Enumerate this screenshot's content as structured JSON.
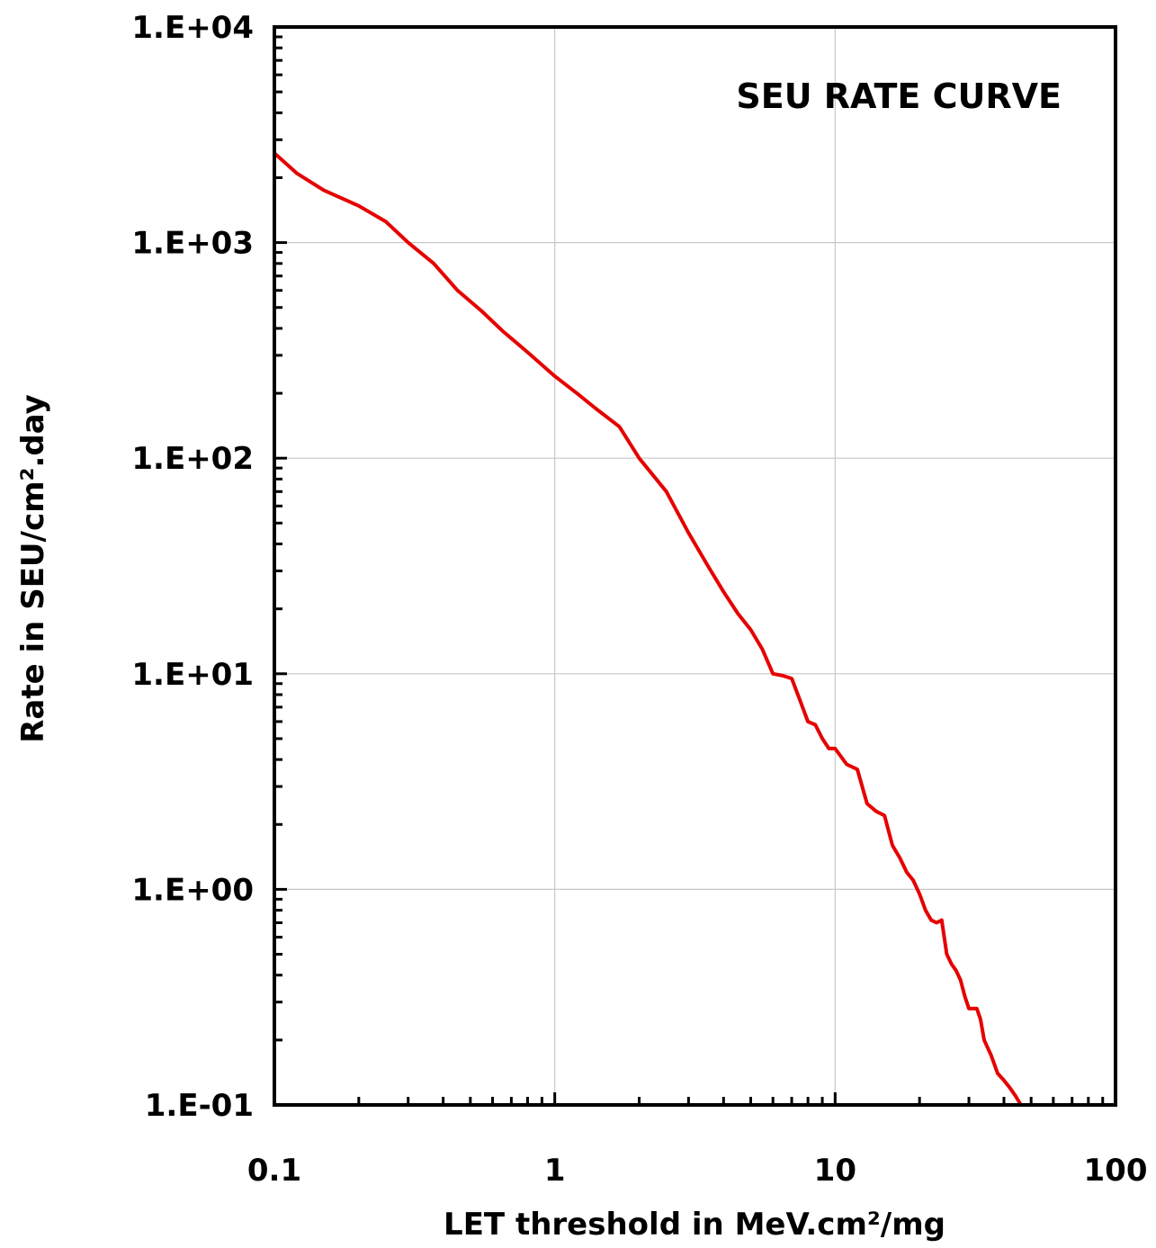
{
  "chart_data": {
    "type": "line",
    "title": "SEU RATE CURVE",
    "xlabel": "LET threshold in MeV.cm²/mg",
    "ylabel": "Rate in SEU/cm².day",
    "xscale": "log",
    "yscale": "log",
    "xlim": [
      0.1,
      100
    ],
    "ylim": [
      0.1,
      10000
    ],
    "grid": true,
    "legend": "none",
    "x_tick_labels": [
      "0.1",
      "1",
      "10",
      "100"
    ],
    "y_tick_labels": [
      "1.E-01",
      "1.E+00",
      "1.E+01",
      "1.E+02",
      "1.E+03",
      "1.E+04"
    ],
    "series": [
      {
        "color": "#e60000",
        "x": [
          0.1,
          0.12,
          0.15,
          0.2,
          0.25,
          0.3,
          0.37,
          0.45,
          0.55,
          0.65,
          0.8,
          1.0,
          1.2,
          1.4,
          1.7,
          2.0,
          2.5,
          3.0,
          3.5,
          4.0,
          4.5,
          5.0,
          5.5,
          6.0,
          6.5,
          7.0,
          7.5,
          8.0,
          8.5,
          9.0,
          9.5,
          10,
          11,
          12,
          13,
          14,
          15,
          16,
          17,
          18,
          19,
          20,
          21,
          22,
          23,
          24,
          25,
          26,
          27,
          28,
          29,
          30,
          32,
          33,
          34,
          36,
          38,
          40,
          42,
          44,
          46
        ],
        "y": [
          2600,
          2100,
          1750,
          1480,
          1250,
          1000,
          800,
          600,
          480,
          390,
          310,
          240,
          200,
          170,
          140,
          100,
          70,
          45,
          32,
          24,
          19,
          16,
          13,
          10,
          9.8,
          9.5,
          7.5,
          6.0,
          5.8,
          5.0,
          4.5,
          4.5,
          3.8,
          3.6,
          2.5,
          2.3,
          2.2,
          1.6,
          1.4,
          1.2,
          1.1,
          0.95,
          0.8,
          0.72,
          0.7,
          0.72,
          0.5,
          0.45,
          0.42,
          0.38,
          0.32,
          0.28,
          0.28,
          0.25,
          0.2,
          0.17,
          0.14,
          0.13,
          0.12,
          0.11,
          0.1
        ]
      }
    ]
  }
}
